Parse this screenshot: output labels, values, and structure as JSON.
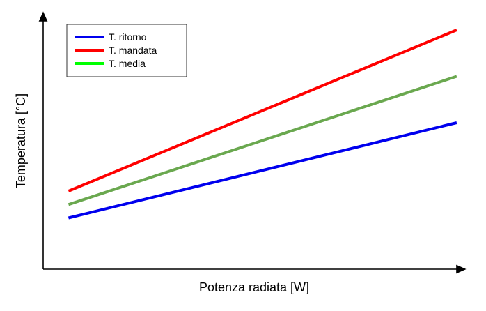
{
  "chart_data": {
    "type": "line",
    "xlabel": "Potenza radiata [W]",
    "ylabel": "Temperatura  [°C]",
    "xlim": [
      0,
      1
    ],
    "ylim": [
      0,
      1
    ],
    "grid": false,
    "legend_position": "top-left",
    "series": [
      {
        "name": "T. ritorno",
        "color": "#0000ee",
        "x": [
          0.06,
          0.98
        ],
        "y": [
          0.21,
          0.6
        ]
      },
      {
        "name": "T. mandata",
        "color": "#ff0000",
        "x": [
          0.06,
          0.98
        ],
        "y": [
          0.32,
          0.98
        ]
      },
      {
        "name": "T. media",
        "color": "#6aa84f",
        "legend_color": "#00ff00",
        "x": [
          0.06,
          0.98
        ],
        "y": [
          0.265,
          0.79
        ]
      }
    ]
  }
}
